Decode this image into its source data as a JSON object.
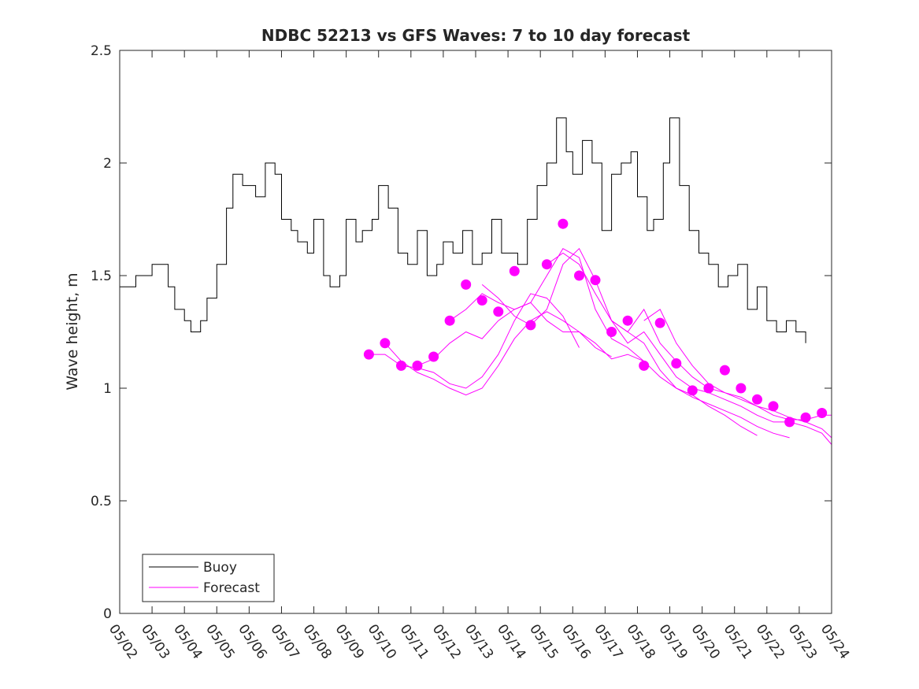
{
  "chart_data": {
    "type": "line",
    "title": "NDBC 52213 vs GFS Waves: 7 to 10 day forecast",
    "ylabel": "Wave height, m",
    "xlabel": "",
    "ylim": [
      0,
      2.5
    ],
    "xlim": [
      0,
      22
    ],
    "yticks": [
      0,
      0.5,
      1,
      1.5,
      2,
      2.5
    ],
    "ytick_labels": [
      "0",
      "0.5",
      "1",
      "1.5",
      "2",
      "2.5"
    ],
    "xtick_labels": [
      "05/02",
      "05/03",
      "05/04",
      "05/05",
      "05/06",
      "05/07",
      "05/08",
      "05/09",
      "05/10",
      "05/11",
      "05/12",
      "05/13",
      "05/14",
      "05/15",
      "05/16",
      "05/17",
      "05/18",
      "05/19",
      "05/20",
      "05/21",
      "05/22",
      "05/23",
      "05/24"
    ],
    "grid": false,
    "legend": {
      "position": "bottom-left",
      "entries": [
        "Buoy",
        "Forecast"
      ]
    },
    "colors": {
      "buoy": "#000000",
      "forecast": "#ff00ff"
    },
    "buoy_x": [
      0,
      0.5,
      1,
      1.5,
      1.7,
      2,
      2.2,
      2.5,
      2.7,
      3,
      3.3,
      3.5,
      3.8,
      4,
      4.2,
      4.5,
      4.8,
      5,
      5.3,
      5.5,
      5.8,
      6,
      6.3,
      6.5,
      6.8,
      7,
      7.3,
      7.5,
      7.8,
      8,
      8.3,
      8.6,
      8.9,
      9.2,
      9.5,
      9.8,
      10,
      10.3,
      10.6,
      10.9,
      11.2,
      11.5,
      11.8,
      12,
      12.3,
      12.6,
      12.9,
      13.2,
      13.5,
      13.8,
      14,
      14.3,
      14.6,
      14.9,
      15.2,
      15.5,
      15.8,
      16,
      16.3,
      16.5,
      16.8,
      17,
      17.3,
      17.6,
      17.9,
      18.2,
      18.5,
      18.8,
      19.1,
      19.4,
      19.7,
      20,
      20.3,
      20.6,
      20.9,
      21.2
    ],
    "buoy_y": [
      1.45,
      1.5,
      1.55,
      1.45,
      1.35,
      1.3,
      1.25,
      1.3,
      1.4,
      1.55,
      1.8,
      1.95,
      1.9,
      1.9,
      1.85,
      2.0,
      1.95,
      1.75,
      1.7,
      1.65,
      1.6,
      1.75,
      1.5,
      1.45,
      1.5,
      1.75,
      1.65,
      1.7,
      1.75,
      1.9,
      1.8,
      1.6,
      1.55,
      1.7,
      1.5,
      1.55,
      1.65,
      1.6,
      1.7,
      1.55,
      1.6,
      1.75,
      1.6,
      1.6,
      1.55,
      1.75,
      1.9,
      2.0,
      2.2,
      2.05,
      1.95,
      2.1,
      2.0,
      1.7,
      1.95,
      2.0,
      2.05,
      1.85,
      1.7,
      1.75,
      2.0,
      2.2,
      1.9,
      1.7,
      1.6,
      1.55,
      1.45,
      1.5,
      1.55,
      1.35,
      1.45,
      1.3,
      1.25,
      1.3,
      1.25,
      1.2
    ]
  },
  "forecast_runs": [
    {
      "x": [
        7.7,
        8.2,
        8.7,
        9.2,
        9.7,
        10.2,
        10.7,
        11.2,
        11.7,
        12.2,
        12.7,
        13.2,
        13.7,
        14.2
      ],
      "y": [
        1.15,
        1.15,
        1.1,
        1.09,
        1.07,
        1.02,
        1.0,
        1.05,
        1.15,
        1.3,
        1.42,
        1.4,
        1.32,
        1.18
      ]
    },
    {
      "x": [
        8.2,
        8.7,
        9.2,
        9.7,
        10.2,
        10.7,
        11.2,
        11.7,
        12.2,
        12.7,
        13.2,
        13.7,
        14.2,
        14.7,
        15.2
      ],
      "y": [
        1.2,
        1.12,
        1.07,
        1.04,
        1.0,
        0.97,
        1.0,
        1.1,
        1.22,
        1.3,
        1.34,
        1.3,
        1.25,
        1.18,
        1.14
      ]
    },
    {
      "x": [
        9.2,
        9.7,
        10.2,
        10.7,
        11.2,
        11.7,
        12.2,
        12.7,
        13.2,
        13.7,
        14.2,
        14.7,
        15.2,
        15.7,
        16.2
      ],
      "y": [
        1.1,
        1.13,
        1.2,
        1.25,
        1.22,
        1.3,
        1.35,
        1.38,
        1.3,
        1.25,
        1.25,
        1.2,
        1.13,
        1.15,
        1.12
      ]
    },
    {
      "x": [
        10.2,
        10.7,
        11.2,
        11.7,
        12.2,
        12.7,
        13.2,
        13.7,
        14.2,
        14.7,
        15.2,
        15.7,
        16.2,
        16.7,
        17.2,
        17.7,
        18.2,
        18.7,
        19.2,
        19.7
      ],
      "y": [
        1.3,
        1.35,
        1.42,
        1.38,
        1.35,
        1.38,
        1.5,
        1.62,
        1.58,
        1.35,
        1.22,
        1.18,
        1.12,
        1.05,
        1.0,
        0.97,
        0.92,
        0.88,
        0.83,
        0.79
      ]
    },
    {
      "x": [
        11.2,
        11.7,
        12.2,
        12.7,
        13.2,
        13.7,
        14.2,
        14.7,
        15.2,
        15.7,
        16.2,
        16.7,
        17.2,
        17.7,
        18.2,
        18.7,
        19.2,
        19.7,
        20.2,
        20.7
      ],
      "y": [
        1.46,
        1.4,
        1.32,
        1.28,
        1.35,
        1.55,
        1.62,
        1.48,
        1.3,
        1.25,
        1.2,
        1.08,
        1.0,
        0.96,
        0.93,
        0.9,
        0.87,
        0.83,
        0.8,
        0.78
      ]
    },
    {
      "x": [
        13.2,
        13.7,
        14.2,
        14.7,
        15.2,
        15.7,
        16.2,
        16.7,
        17.2,
        17.7,
        18.2,
        18.7,
        19.2,
        19.7,
        20.2,
        20.7,
        21.2,
        21.7,
        22.0
      ],
      "y": [
        1.55,
        1.6,
        1.55,
        1.42,
        1.3,
        1.2,
        1.25,
        1.15,
        1.05,
        1.0,
        0.98,
        0.95,
        0.92,
        0.88,
        0.85,
        0.85,
        0.83,
        0.8,
        0.75
      ]
    },
    {
      "x": [
        15.2,
        15.7,
        16.2,
        16.7,
        17.2,
        17.7,
        18.2,
        18.7,
        19.2,
        19.7,
        20.2,
        20.7,
        21.2,
        21.7,
        22.0
      ],
      "y": [
        1.3,
        1.25,
        1.35,
        1.2,
        1.12,
        1.05,
        1.0,
        0.98,
        0.95,
        0.92,
        0.9,
        0.87,
        0.85,
        0.82,
        0.78
      ]
    },
    {
      "x": [
        16.2,
        16.7,
        17.2,
        17.7,
        18.2,
        18.7,
        19.2,
        19.7,
        20.2,
        20.7,
        21.2,
        21.7,
        22.0
      ],
      "y": [
        1.3,
        1.35,
        1.2,
        1.1,
        1.02,
        0.98,
        0.96,
        0.92,
        0.88,
        0.86,
        0.86,
        0.88,
        0.88
      ]
    }
  ],
  "forecast_points": {
    "x": [
      7.7,
      8.2,
      8.7,
      9.2,
      9.7,
      10.2,
      10.7,
      11.2,
      11.7,
      12.2,
      12.7,
      13.2,
      13.7,
      14.2,
      14.7,
      15.2,
      15.7,
      16.2,
      16.7,
      17.2,
      17.7,
      18.2,
      18.7,
      19.2,
      19.7,
      20.2,
      20.7,
      21.2,
      21.7
    ],
    "y": [
      1.15,
      1.2,
      1.1,
      1.1,
      1.14,
      1.3,
      1.46,
      1.39,
      1.34,
      1.52,
      1.28,
      1.55,
      1.73,
      1.5,
      1.48,
      1.25,
      1.3,
      1.1,
      1.29,
      1.11,
      0.99,
      1.0,
      1.08,
      1.0,
      0.95,
      0.92,
      0.85,
      0.87,
      0.89
    ]
  }
}
